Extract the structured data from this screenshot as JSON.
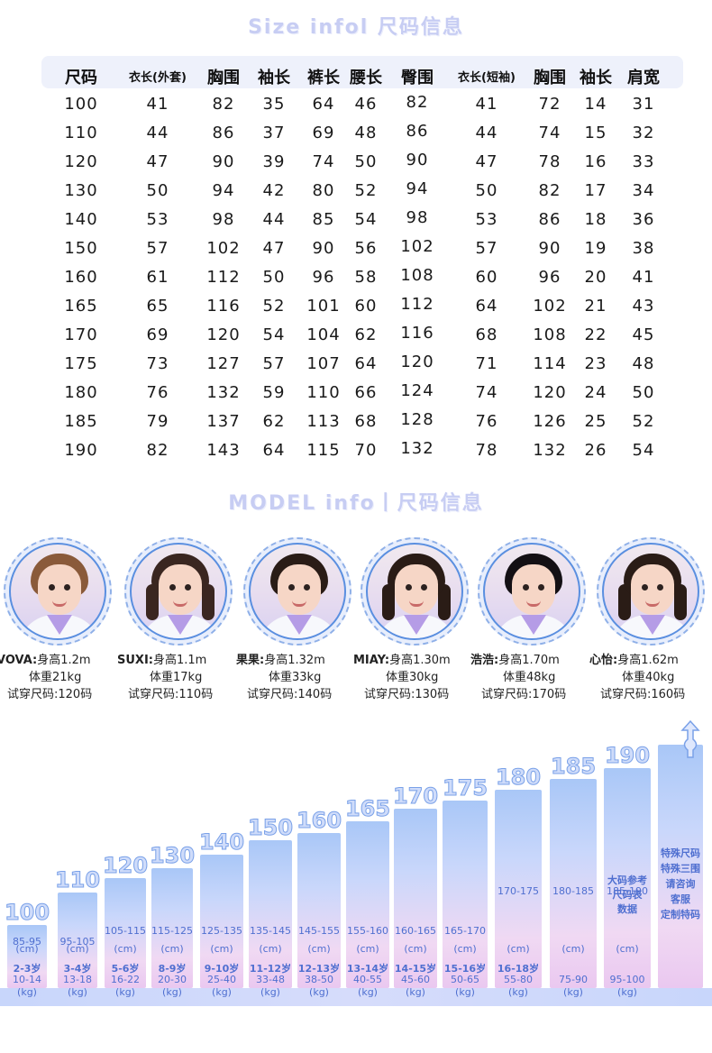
{
  "titles": {
    "size": "Size infol 尺码信息",
    "model": "MODEL info丨尺码信息"
  },
  "size_table": {
    "headers": [
      "尺码",
      "衣长(外套)",
      "胸围",
      "袖长",
      "裤长",
      "腰长",
      "臀围",
      "衣长(短袖)",
      "胸围",
      "袖长",
      "肩宽"
    ],
    "rows": [
      [
        "100",
        "41",
        "82",
        "35",
        "64",
        "46",
        "82",
        "41",
        "72",
        "14",
        "31"
      ],
      [
        "110",
        "44",
        "86",
        "37",
        "69",
        "48",
        "86",
        "44",
        "74",
        "15",
        "32"
      ],
      [
        "120",
        "47",
        "90",
        "39",
        "74",
        "50",
        "90",
        "47",
        "78",
        "16",
        "33"
      ],
      [
        "130",
        "50",
        "94",
        "42",
        "80",
        "52",
        "94",
        "50",
        "82",
        "17",
        "34"
      ],
      [
        "140",
        "53",
        "98",
        "44",
        "85",
        "54",
        "98",
        "53",
        "86",
        "18",
        "36"
      ],
      [
        "150",
        "57",
        "102",
        "47",
        "90",
        "56",
        "102",
        "57",
        "90",
        "19",
        "38"
      ],
      [
        "160",
        "61",
        "112",
        "50",
        "96",
        "58",
        "108",
        "60",
        "96",
        "20",
        "41"
      ],
      [
        "165",
        "65",
        "116",
        "52",
        "101",
        "60",
        "112",
        "64",
        "102",
        "21",
        "43"
      ],
      [
        "170",
        "69",
        "120",
        "54",
        "104",
        "62",
        "116",
        "68",
        "108",
        "22",
        "45"
      ],
      [
        "175",
        "73",
        "127",
        "57",
        "107",
        "64",
        "120",
        "71",
        "114",
        "23",
        "48"
      ],
      [
        "180",
        "76",
        "132",
        "59",
        "110",
        "66",
        "124",
        "74",
        "120",
        "24",
        "50"
      ],
      [
        "185",
        "79",
        "137",
        "62",
        "113",
        "68",
        "128",
        "76",
        "126",
        "25",
        "52"
      ],
      [
        "190",
        "82",
        "143",
        "64",
        "115",
        "70",
        "132",
        "78",
        "132",
        "26",
        "54"
      ]
    ]
  },
  "models": [
    {
      "name": "VOVA:",
      "height": "身高1.2m",
      "weight": "体重21kg",
      "size": "试穿尺码:120码",
      "hair": "#8a5a3a",
      "gender": "boy"
    },
    {
      "name": "SUXI:",
      "height": "身高1.1m",
      "weight": "体重17kg",
      "size": "试穿尺码:110码",
      "hair": "#3a2620",
      "gender": "girl"
    },
    {
      "name": "果果:",
      "height": "身高1.32m",
      "weight": "体重33kg",
      "size": "试穿尺码:140码",
      "hair": "#2a1c16",
      "gender": "boy"
    },
    {
      "name": "MIAY:",
      "height": "身高1.30m",
      "weight": "体重30kg",
      "size": "试穿尺码:130码",
      "hair": "#2a1c16",
      "gender": "girl"
    },
    {
      "name": "浩浩:",
      "height": "身高1.70m",
      "weight": "体重48kg",
      "size": "试穿尺码:170码",
      "hair": "#141014",
      "gender": "boy"
    },
    {
      "name": "心怡:",
      "height": "身高1.62m",
      "weight": "体重40kg",
      "size": "试穿尺码:160码",
      "hair": "#2a1c16",
      "gender": "girl"
    }
  ],
  "height_chart": {
    "bars": [
      {
        "label": "100",
        "height_range": "85-95",
        "height_unit": "(cm)",
        "age": "2-3岁",
        "weight_range": "10-14",
        "weight_unit": "(kg)"
      },
      {
        "label": "110",
        "height_range": "95-105",
        "height_unit": "(cm)",
        "age": "3-4岁",
        "weight_range": "13-18",
        "weight_unit": "(kg)"
      },
      {
        "label": "120",
        "height_range": "105-115",
        "height_unit": "(cm)",
        "age": "5-6岁",
        "weight_range": "16-22",
        "weight_unit": "(kg)"
      },
      {
        "label": "130",
        "height_range": "115-125",
        "height_unit": "(cm)",
        "age": "8-9岁",
        "weight_range": "20-30",
        "weight_unit": "(kg)"
      },
      {
        "label": "140",
        "height_range": "125-135",
        "height_unit": "(cm)",
        "age": "9-10岁",
        "weight_range": "25-40",
        "weight_unit": "(kg)"
      },
      {
        "label": "150",
        "height_range": "135-145",
        "height_unit": "(cm)",
        "age": "11-12岁",
        "weight_range": "33-48",
        "weight_unit": "(kg)"
      },
      {
        "label": "160",
        "height_range": "145-155",
        "height_unit": "(cm)",
        "age": "12-13岁",
        "weight_range": "38-50",
        "weight_unit": "(kg)"
      },
      {
        "label": "165",
        "height_range": "155-160",
        "height_unit": "(cm)",
        "age": "13-14岁",
        "weight_range": "40-55",
        "weight_unit": "(kg)"
      },
      {
        "label": "170",
        "height_range": "160-165",
        "height_unit": "(cm)",
        "age": "14-15岁",
        "weight_range": "45-60",
        "weight_unit": "(kg)"
      },
      {
        "label": "175",
        "height_range": "165-170",
        "height_unit": "(cm)",
        "age": "15-16岁",
        "weight_range": "50-65",
        "weight_unit": "(kg)"
      },
      {
        "label": "180",
        "height_range": "170-175",
        "height_unit": "(cm)",
        "age": "16-18岁",
        "weight_range": "55-80",
        "weight_unit": "(kg)"
      },
      {
        "label": "185",
        "height_range": "180-185",
        "height_unit": "(cm)",
        "age": "",
        "weight_range": "75-90",
        "weight_unit": "(kg)"
      },
      {
        "label": "190",
        "height_range": "185-190",
        "height_unit": "(cm)",
        "note": [
          "大码参考",
          "尺码表",
          "数据"
        ],
        "age": "",
        "weight_range": "95-100",
        "weight_unit": "(kg)"
      }
    ],
    "special": {
      "lines": [
        "特殊尺码",
        "特殊三围",
        "请咨询",
        "客服",
        "定制特码"
      ],
      "icon": "up-arrow-icon"
    }
  },
  "colors": {
    "accent": "#7aa1e8",
    "text_blue": "#4f6fd0",
    "title": "#c7cdf3"
  }
}
